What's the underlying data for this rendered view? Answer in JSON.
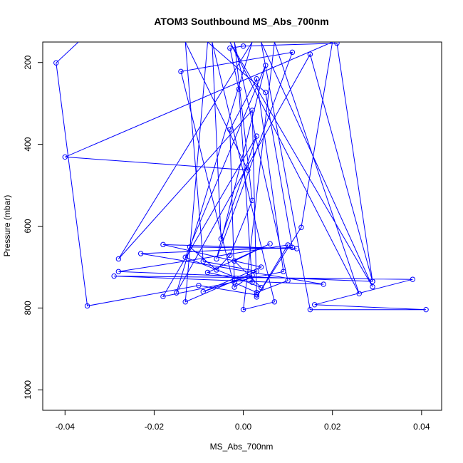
{
  "chart_data": {
    "type": "line",
    "title": "ATOM3 Southbound MS_Abs_700nm",
    "xlabel": "MS_Abs_700nm",
    "ylabel": "Pressure (mbar)",
    "xlim": [
      -0.045,
      0.0445
    ],
    "ylim": [
      1050,
      150
    ],
    "y_reversed": true,
    "x_ticks": [
      -0.04,
      -0.02,
      0.0,
      0.02,
      0.04
    ],
    "x_tick_labels": [
      "-0.04",
      "-0.02",
      "0.00",
      "0.02",
      "0.04"
    ],
    "y_ticks": [
      200,
      400,
      600,
      800,
      1000
    ],
    "y_tick_labels": [
      "200",
      "400",
      "600",
      "800",
      "1000"
    ],
    "grid": false,
    "series": [
      {
        "color": "#0000ff",
        "marker": "open-circle",
        "points": [
          {
            "x": -0.037,
            "y": 150
          },
          {
            "x": -0.042,
            "y": 201
          },
          {
            "x": -0.035,
            "y": 795
          },
          {
            "x": -0.01,
            "y": 745
          },
          {
            "x": 0.003,
            "y": 768
          },
          {
            "x": 0.002,
            "y": 317
          },
          {
            "x": -0.028,
            "y": 680
          },
          {
            "x": 0.002,
            "y": 150
          },
          {
            "x": -0.015,
            "y": 763
          },
          {
            "x": 0.015,
            "y": 180
          },
          {
            "x": 0.029,
            "y": 735
          },
          {
            "x": -0.028,
            "y": 711
          },
          {
            "x": 0.01,
            "y": 646
          },
          {
            "x": 0.003,
            "y": 773
          },
          {
            "x": 0.013,
            "y": 603
          },
          {
            "x": 0.02,
            "y": 150
          },
          {
            "x": -0.04,
            "y": 431
          },
          {
            "x": 0.001,
            "y": 463
          },
          {
            "x": -0.013,
            "y": 150
          },
          {
            "x": -0.009,
            "y": 686
          },
          {
            "x": 0.003,
            "y": 710
          },
          {
            "x": -0.013,
            "y": 785
          },
          {
            "x": -0.008,
            "y": 150
          },
          {
            "x": 0.005,
            "y": 273
          },
          {
            "x": 0.011,
            "y": 652
          },
          {
            "x": -0.023,
            "y": 667
          },
          {
            "x": 0.018,
            "y": 742
          },
          {
            "x": -0.029,
            "y": 722
          },
          {
            "x": 0.038,
            "y": 730
          },
          {
            "x": 0.016,
            "y": 792
          },
          {
            "x": 0.041,
            "y": 804
          },
          {
            "x": 0.015,
            "y": 804
          },
          {
            "x": 0.004,
            "y": 150
          },
          {
            "x": 0.029,
            "y": 748
          },
          {
            "x": -0.003,
            "y": 150
          },
          {
            "x": 0.026,
            "y": 765
          },
          {
            "x": 0.007,
            "y": 150
          },
          {
            "x": 0.0,
            "y": 804
          },
          {
            "x": 0.007,
            "y": 785
          },
          {
            "x": -0.007,
            "y": 150
          },
          {
            "x": -0.005,
            "y": 631
          },
          {
            "x": 0.003,
            "y": 380
          },
          {
            "x": -0.018,
            "y": 772
          },
          {
            "x": 0.009,
            "y": 711
          },
          {
            "x": 0.003,
            "y": 240
          },
          {
            "x": -0.003,
            "y": 364
          },
          {
            "x": -0.002,
            "y": 738
          },
          {
            "x": 0.003,
            "y": 762
          },
          {
            "x": 0.01,
            "y": 733
          },
          {
            "x": -0.002,
            "y": 150
          },
          {
            "x": 0.002,
            "y": 537
          },
          {
            "x": -0.003,
            "y": 671
          },
          {
            "x": -0.006,
            "y": 707
          },
          {
            "x": -0.012,
            "y": 651
          },
          {
            "x": 0.012,
            "y": 655
          },
          {
            "x": -0.018,
            "y": 645
          },
          {
            "x": 0.004,
            "y": 700
          },
          {
            "x": -0.009,
            "y": 760
          },
          {
            "x": 0.002,
            "y": 720
          },
          {
            "x": -0.002,
            "y": 749
          },
          {
            "x": -0.014,
            "y": 222
          },
          {
            "x": 0.011,
            "y": 175
          },
          {
            "x": -0.006,
            "y": 680
          },
          {
            "x": 0.005,
            "y": 207
          },
          {
            "x": -0.013,
            "y": 676
          },
          {
            "x": 0.004,
            "y": 750
          },
          {
            "x": -0.002,
            "y": 685
          },
          {
            "x": 0.006,
            "y": 643
          },
          {
            "x": -0.008,
            "y": 713
          },
          {
            "x": 0.002,
            "y": 737
          },
          {
            "x": -0.001,
            "y": 265
          },
          {
            "x": -0.003,
            "y": 165
          },
          {
            "x": 0.0,
            "y": 160
          },
          {
            "x": 0.021,
            "y": 153
          },
          {
            "x": 0.029,
            "y": 735
          }
        ]
      }
    ]
  }
}
